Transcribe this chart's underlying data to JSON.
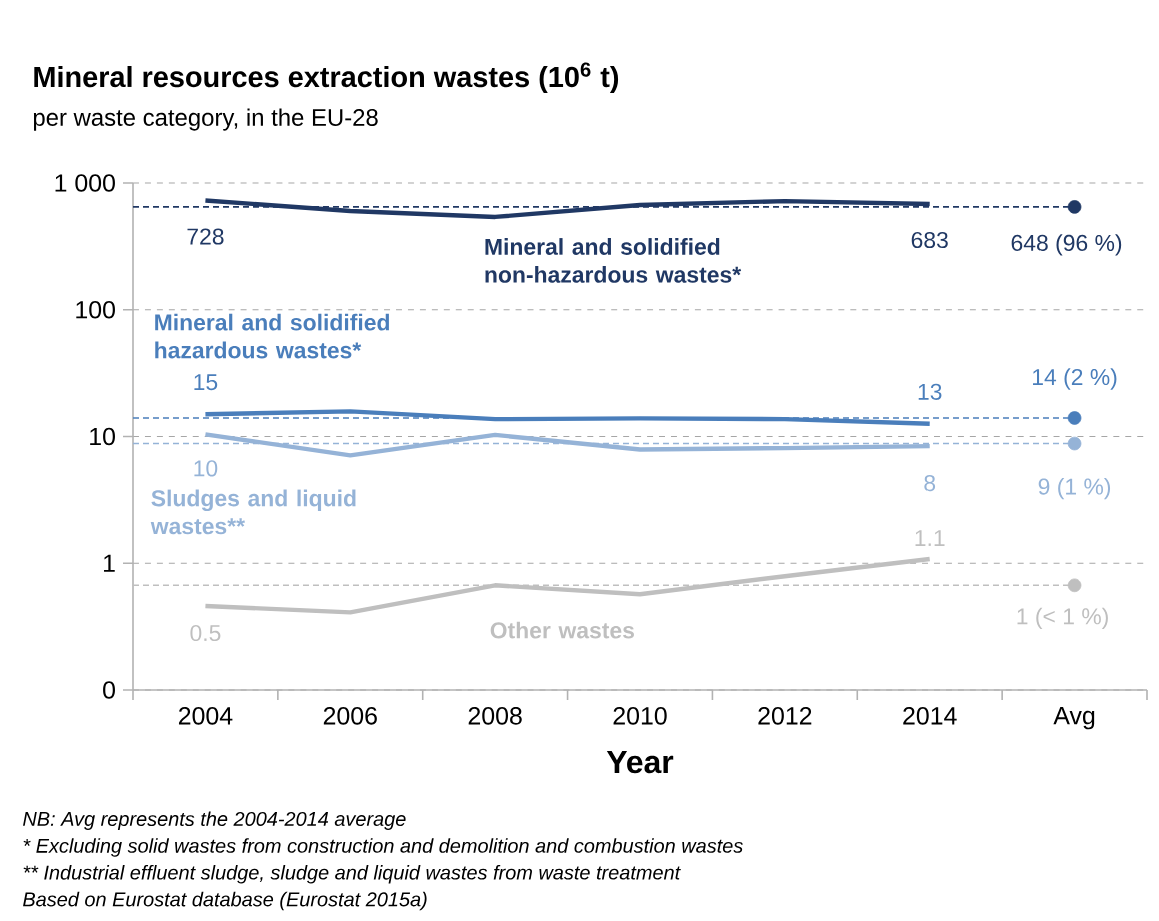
{
  "chart_data": {
    "type": "line",
    "title": "Mineral resources extraction wastes (10$^{6}$ t)",
    "subtitle": "per waste category, in the EU-28",
    "xlabel": "Year",
    "categories": [
      "2004",
      "2006",
      "2008",
      "2010",
      "2012",
      "2014",
      "Avg"
    ],
    "log": true,
    "ylim": [
      0.1,
      1000
    ],
    "yticks": [
      {
        "value": 0.1,
        "label": "0"
      },
      1,
      10,
      100,
      {
        "value": 1000,
        "label": "1 000"
      }
    ],
    "grid": "y",
    "series": [
      {
        "name": "Mineral and solidified non-hazardous wastes*",
        "marker": "none",
        "color": "#203864",
        "values": [
          728,
          601,
          540,
          670,
          720,
          683,
          null
        ],
        "value_labels": [
          "728",
          null,
          null,
          null,
          null,
          "683",
          null
        ]
      },
      {
        "name": "Mineral and solidified hazardous wastes*",
        "marker": "none",
        "color": "#4a7ebb",
        "values": [
          15,
          15.8,
          13.7,
          13.9,
          13.7,
          12.6,
          null
        ],
        "value_labels": [
          "15",
          null,
          null,
          null,
          null,
          "13",
          null
        ]
      },
      {
        "name": "Sludges and liquid wastes**",
        "marker": "none",
        "color": "#95b3d7",
        "values": [
          10.4,
          7.1,
          10.3,
          7.9,
          8.1,
          8.4,
          null
        ],
        "value_labels": [
          "10",
          null,
          null,
          null,
          null,
          "8",
          null
        ]
      },
      {
        "name": "Other wastes",
        "marker": "none",
        "color": "#bfbfbf",
        "values": [
          0.46,
          0.41,
          0.67,
          0.57,
          0.79,
          1.08,
          null
        ],
        "value_labels": [
          "0.5",
          null,
          null,
          null,
          null,
          "1.1",
          null
        ]
      },
      {
        "type": "scatter",
        "marker": "circle",
        "color": "#203864",
        "values": [
          null,
          null,
          null,
          null,
          null,
          null,
          648
        ],
        "value_labels": [
          null,
          null,
          null,
          null,
          null,
          null,
          "648 (96 %)"
        ]
      },
      {
        "type": "scatter",
        "marker": "circle",
        "color": "#4a7ebb",
        "values": [
          null,
          null,
          null,
          null,
          null,
          null,
          14
        ],
        "value_labels": [
          null,
          null,
          null,
          null,
          null,
          null,
          "14 (2 %)"
        ]
      },
      {
        "type": "scatter",
        "marker": "circle",
        "color": "#95b3d7",
        "values": [
          null,
          null,
          null,
          null,
          null,
          null,
          8.8
        ],
        "value_labels": [
          null,
          null,
          null,
          null,
          null,
          null,
          "9 (1 %)"
        ]
      },
      {
        "type": "scatter",
        "marker": "circle",
        "color": "#bfbfbf",
        "values": [
          null,
          null,
          null,
          null,
          null,
          null,
          0.67
        ],
        "value_labels": [
          null,
          null,
          null,
          null,
          null,
          null,
          "1 (< 1 %)"
        ]
      }
    ],
    "ref_lines": [
      {
        "axis": "y",
        "value": 648,
        "color": "#203864",
        "line_style": "dashed"
      },
      {
        "axis": "y",
        "value": 14,
        "color": "#4a7ebb",
        "line_style": "dashed"
      },
      {
        "axis": "y",
        "value": 8.8,
        "color": "#95b3d7",
        "line_style": "dashed"
      },
      {
        "axis": "y",
        "value": 0.67,
        "color": "#bfbfbf",
        "line_style": "dashed"
      }
    ],
    "annotations": [
      "NB: Avg represents the 2004-2014 average",
      "* Excluding solid wastes from construction and demolition and combustion wastes",
      "** Industrial effluent sludge, sludge and liquid wastes from waste treatment",
      "Based on Eurostat database (Eurostat 2015a)"
    ]
  }
}
